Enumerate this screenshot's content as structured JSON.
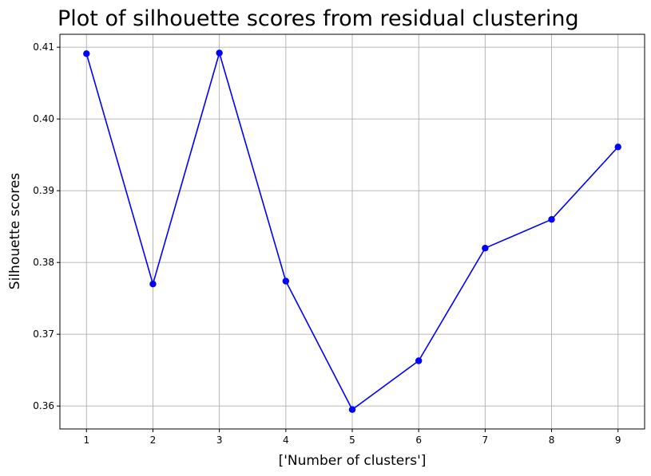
{
  "chart_data": {
    "type": "line",
    "title": "Plot of silhouette scores from residual clustering",
    "xlabel": "['Number of clusters']",
    "ylabel": "Silhouette scores",
    "x": [
      1,
      2,
      3,
      4,
      5,
      6,
      7,
      8,
      9
    ],
    "series": [
      {
        "values": [
          0.4091,
          0.377,
          0.4092,
          0.3774,
          0.3595,
          0.3663,
          0.382,
          0.386,
          0.3961
        ],
        "color": "#0000ff",
        "marker": "circle"
      }
    ],
    "xticks": [
      "1",
      "2",
      "3",
      "4",
      "5",
      "6",
      "7",
      "8",
      "9"
    ],
    "yticks": [
      "0.36",
      "0.37",
      "0.38",
      "0.39",
      "0.40",
      "0.41"
    ],
    "ytick_values": [
      0.36,
      0.37,
      0.38,
      0.39,
      0.4,
      0.41
    ],
    "xlim": [
      0.6,
      9.4
    ],
    "ylim": [
      0.3568,
      0.4118
    ],
    "grid": true
  }
}
